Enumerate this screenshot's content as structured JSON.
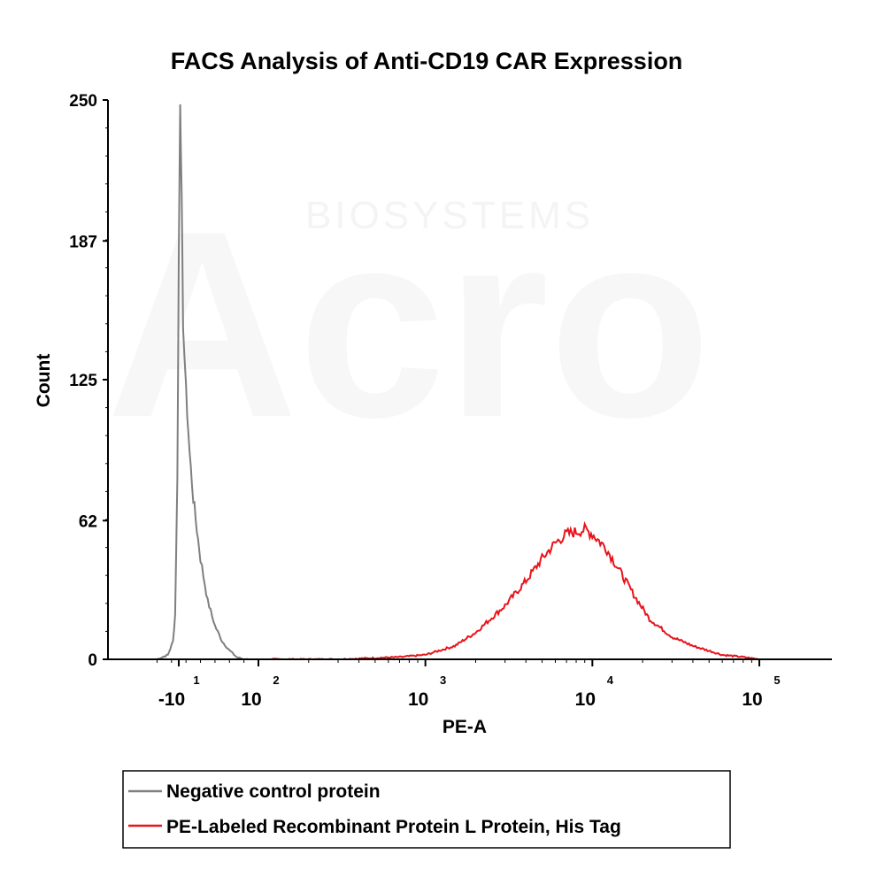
{
  "chart_data": {
    "type": "line",
    "title": "FACS Analysis of Anti-CD19 CAR Expression",
    "xlabel": "PE-A",
    "ylabel": "Count",
    "ylim": [
      0,
      250
    ],
    "y_ticks": [
      0,
      62,
      125,
      187,
      250
    ],
    "x_scale": "biexponential",
    "x_ticks": [
      {
        "base": "-10",
        "exp": "1",
        "value": -10
      },
      {
        "base": "10",
        "exp": "2",
        "value": 100
      },
      {
        "base": "10",
        "exp": "3",
        "value": 1000
      },
      {
        "base": "10",
        "exp": "4",
        "value": 10000
      },
      {
        "base": "10",
        "exp": "5",
        "value": 100000
      }
    ],
    "legend_position": "bottom",
    "series": [
      {
        "name": "Negative control protein",
        "color": "#7f7f7f",
        "x": [
          -40,
          -25,
          -18,
          -15,
          -12,
          -10,
          -8,
          -6,
          -4,
          0,
          5,
          10,
          15,
          20,
          30,
          40,
          50,
          60,
          70,
          80,
          90
        ],
        "y": [
          0,
          2,
          8,
          20,
          80,
          180,
          250,
          205,
          150,
          120,
          92,
          72,
          58,
          45,
          26,
          15,
          8,
          4,
          1,
          0,
          0
        ]
      },
      {
        "name": "PE-Labeled Recombinant Protein L Protein, His Tag",
        "color": "#e8141b",
        "x": [
          120,
          300,
          700,
          1000,
          1500,
          2000,
          3000,
          4000,
          5000,
          6000,
          7000,
          8000,
          9000,
          10000,
          12000,
          15000,
          18000,
          22000,
          30000,
          40000,
          60000,
          80000,
          100000
        ],
        "y": [
          0,
          0,
          1,
          2,
          6,
          12,
          24,
          35,
          45,
          52,
          56,
          57,
          58,
          56,
          50,
          38,
          28,
          18,
          10,
          6,
          2,
          1,
          0
        ]
      }
    ]
  },
  "watermark": {
    "letters": "Acro",
    "subtitle": "BIOSYSTEMS"
  }
}
